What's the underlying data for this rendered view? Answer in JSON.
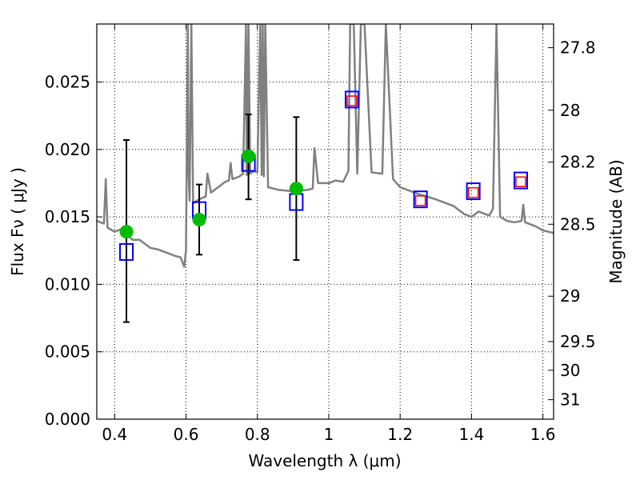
{
  "chart_data": {
    "type": "line",
    "xlabel": "Wavelength  λ (μm)",
    "ylabel": "Flux  Fν  ( μJy )",
    "y2label": "Magnitude (AB)",
    "xlim": [
      0.35,
      1.63
    ],
    "ylim": [
      0.0,
      0.0293
    ],
    "grid": true,
    "x_ticks": [
      0.4,
      0.6,
      0.8,
      1.0,
      1.2,
      1.4,
      1.6
    ],
    "x_tick_labels": [
      "0.4",
      "0.6",
      "0.8",
      "1",
      "1.2",
      "1.4",
      "1.6"
    ],
    "y_ticks": [
      0.0,
      0.005,
      0.01,
      0.015,
      0.02,
      0.025
    ],
    "y_tick_labels": [
      "0.000",
      "0.005",
      "0.010",
      "0.015",
      "0.020",
      "0.025"
    ],
    "mag_ticks": [
      27.8,
      28,
      28.2,
      28.5,
      29,
      29.5,
      30,
      31
    ],
    "mag_tick_labels": [
      "27.8",
      "28",
      "28.2",
      "28.5",
      "29",
      "29.5",
      "30",
      "31"
    ],
    "colors": {
      "template": "#808080",
      "observed": "#00bb00",
      "model_box": "#0000ff",
      "synthetic_box": "#ff0000",
      "error_bar": "#000000"
    },
    "series": [
      {
        "kind": "template_spectrum",
        "x": [
          0.35,
          0.37,
          0.375,
          0.38,
          0.4,
          0.42,
          0.45,
          0.47,
          0.5,
          0.52,
          0.55,
          0.57,
          0.585,
          0.595,
          0.6,
          0.605,
          0.607,
          0.61,
          0.615,
          0.62,
          0.63,
          0.645,
          0.655,
          0.66,
          0.67,
          0.68,
          0.69,
          0.7,
          0.71,
          0.72,
          0.725,
          0.73,
          0.75,
          0.76,
          0.768,
          0.77,
          0.775,
          0.78,
          0.79,
          0.8,
          0.808,
          0.812,
          0.815,
          0.818,
          0.822,
          0.83,
          0.86,
          0.9,
          0.94,
          0.955,
          0.96,
          0.97,
          1.0,
          1.02,
          1.04,
          1.055,
          1.06,
          1.07,
          1.08,
          1.09,
          1.1,
          1.12,
          1.15,
          1.16,
          1.18,
          1.2,
          1.25,
          1.3,
          1.35,
          1.38,
          1.4,
          1.42,
          1.45,
          1.46,
          1.47,
          1.48,
          1.5,
          1.52,
          1.54,
          1.545,
          1.55,
          1.58,
          1.6,
          1.63
        ],
        "y": [
          0.0147,
          0.0145,
          0.0178,
          0.0142,
          0.0139,
          0.0141,
          0.0133,
          0.0133,
          0.0127,
          0.0126,
          0.0123,
          0.0121,
          0.012,
          0.0113,
          0.0125,
          0.0293,
          0.0185,
          0.0162,
          0.0293,
          0.016,
          0.0162,
          0.0164,
          0.0165,
          0.0182,
          0.0168,
          0.017,
          0.0172,
          0.0174,
          0.0176,
          0.0177,
          0.019,
          0.0178,
          0.018,
          0.0182,
          0.0293,
          0.0181,
          0.0293,
          0.0182,
          0.0184,
          0.0183,
          0.0293,
          0.0181,
          0.0293,
          0.018,
          0.0293,
          0.0172,
          0.017,
          0.0169,
          0.017,
          0.0171,
          0.0201,
          0.0175,
          0.0175,
          0.0177,
          0.0176,
          0.0184,
          0.0293,
          0.0293,
          0.0182,
          0.0293,
          0.0293,
          0.0183,
          0.0182,
          0.0293,
          0.0178,
          0.0172,
          0.0167,
          0.0163,
          0.0158,
          0.0152,
          0.015,
          0.0154,
          0.0151,
          0.0156,
          0.0293,
          0.015,
          0.0147,
          0.0146,
          0.0147,
          0.0159,
          0.0146,
          0.0143,
          0.014,
          0.0138
        ]
      },
      {
        "kind": "observed_points",
        "x": [
          0.433,
          0.637,
          0.775,
          0.909
        ],
        "y": [
          0.0139,
          0.0148,
          0.0195,
          0.0171
        ],
        "yerr_low": [
          0.0072,
          0.0122,
          0.0163,
          0.0118
        ],
        "yerr_high": [
          0.0207,
          0.0174,
          0.0226,
          0.0224
        ]
      },
      {
        "kind": "model_boxes",
        "x": [
          0.433,
          0.637,
          0.775,
          0.909,
          1.065,
          1.257,
          1.405,
          1.538
        ],
        "y": [
          0.0124,
          0.0155,
          0.019,
          0.0161,
          0.0237,
          0.0163,
          0.0169,
          0.0177
        ]
      },
      {
        "kind": "synthetic_boxes",
        "x": [
          1.065,
          1.257,
          1.405,
          1.538
        ],
        "y": [
          0.0236,
          0.0162,
          0.0168,
          0.0176
        ]
      }
    ]
  }
}
